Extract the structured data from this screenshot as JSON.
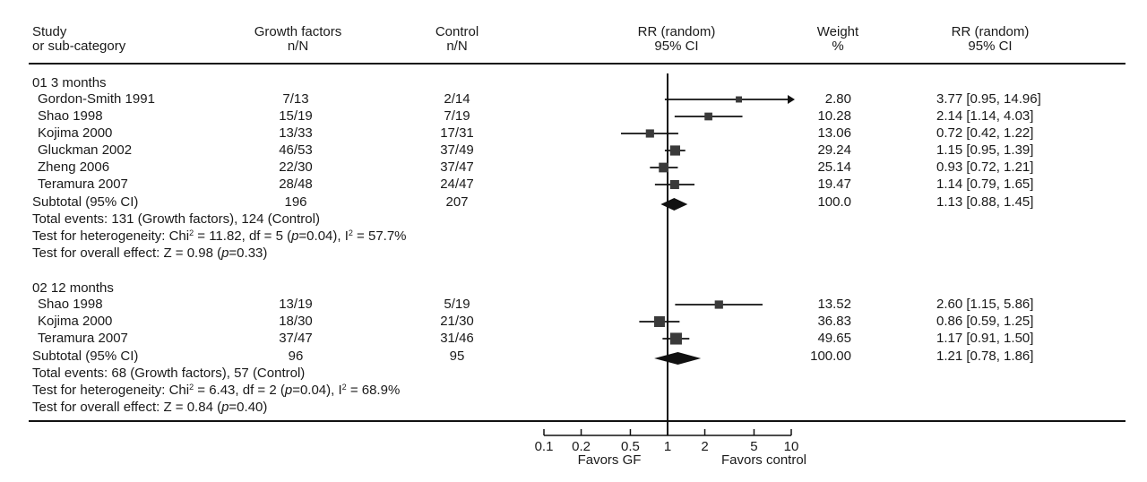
{
  "header": {
    "study_l1": "Study",
    "study_l2": "or sub-category",
    "gf_l1": "Growth factors",
    "gf_l2": "n/N",
    "ctrl_l1": "Control",
    "ctrl_l2": "n/N",
    "rr_l1": "RR (random)",
    "rr_l2": "95% CI",
    "weight_l1": "Weight",
    "weight_l2": "%",
    "rrv_l1": "RR (random)",
    "rrv_l2": "95% CI"
  },
  "groups": [
    {
      "title": "01 3 months",
      "studies": [
        {
          "name": "Gordon-Smith 1991",
          "gf": "7/13",
          "ctrl": "2/14",
          "weight": "2.80",
          "ci_text": "3.77 [0.95, 14.96]"
        },
        {
          "name": "Shao 1998",
          "gf": "15/19",
          "ctrl": "7/19",
          "weight": "10.28",
          "ci_text": "2.14 [1.14, 4.03]"
        },
        {
          "name": "Kojima 2000",
          "gf": "13/33",
          "ctrl": "17/31",
          "weight": "13.06",
          "ci_text": "0.72 [0.42, 1.22]"
        },
        {
          "name": "Gluckman 2002",
          "gf": "46/53",
          "ctrl": "37/49",
          "weight": "29.24",
          "ci_text": "1.15 [0.95, 1.39]"
        },
        {
          "name": "Zheng 2006",
          "gf": "22/30",
          "ctrl": "37/47",
          "weight": "25.14",
          "ci_text": "0.93 [0.72, 1.21]"
        },
        {
          "name": "Teramura 2007",
          "gf": "28/48",
          "ctrl": "24/47",
          "weight": "19.47",
          "ci_text": "1.14 [0.79, 1.65]"
        }
      ],
      "subtotal": {
        "name": "Subtotal (95% CI)",
        "gf": "196",
        "ctrl": "207",
        "weight": "100.0",
        "ci_text": "1.13 [0.88, 1.45]"
      },
      "events": "Total events: 131 (Growth factors), 124 (Control)",
      "het_a": "Test for heterogeneity: Chi",
      "het_sup1": "2",
      "het_b": " = 11.82, df = 5 (",
      "het_p": "p",
      "het_c": "=0.04), I",
      "het_sup2": "2",
      "het_d": " = 57.7%",
      "overall_a": "Test for overall effect: Z = 0.98 (",
      "overall_p": "p",
      "overall_b": "=0.33)"
    },
    {
      "title": "02 12 months",
      "studies": [
        {
          "name": "Shao 1998",
          "gf": "13/19",
          "ctrl": "5/19",
          "weight": "13.52",
          "ci_text": "2.60 [1.15, 5.86]"
        },
        {
          "name": "Kojima 2000",
          "gf": "18/30",
          "ctrl": "21/30",
          "weight": "36.83",
          "ci_text": "0.86 [0.59, 1.25]"
        },
        {
          "name": "Teramura 2007",
          "gf": "37/47",
          "ctrl": "31/46",
          "weight": "49.65",
          "ci_text": "1.17 [0.91, 1.50]"
        }
      ],
      "subtotal": {
        "name": "Subtotal (95% CI)",
        "gf": "96",
        "ctrl": "95",
        "weight": "100.00",
        "ci_text": "1.21 [0.78, 1.86]"
      },
      "events": "Total events: 68 (Growth factors), 57 (Control)",
      "het_a": "Test for heterogeneity: Chi",
      "het_sup1": "2",
      "het_b": " = 6.43, df = 2 (",
      "het_p": "p",
      "het_c": "=0.04), I",
      "het_sup2": "2",
      "het_d": " = 68.9%",
      "overall_a": "Test for overall effect: Z = 0.84 (",
      "overall_p": "p",
      "overall_b": "=0.40)"
    }
  ],
  "axis": {
    "ticks": [
      "0.1",
      "0.2",
      "0.5",
      "1",
      "2",
      "5",
      "10"
    ],
    "favors_left": "Favors GF",
    "favors_right": "Favors control"
  },
  "chart_data": {
    "type": "forest",
    "title": "",
    "xlabel": "RR (random) 95% CI",
    "xscale": "log",
    "xlim": [
      0.1,
      10
    ],
    "reference": 1,
    "series": [
      {
        "name": "01 3 months",
        "studies": [
          {
            "label": "Gordon-Smith 1991",
            "rr": 3.77,
            "lo": 0.95,
            "hi": 14.96,
            "weight": 2.8
          },
          {
            "label": "Shao 1998",
            "rr": 2.14,
            "lo": 1.14,
            "hi": 4.03,
            "weight": 10.28
          },
          {
            "label": "Kojima 2000",
            "rr": 0.72,
            "lo": 0.42,
            "hi": 1.22,
            "weight": 13.06
          },
          {
            "label": "Gluckman 2002",
            "rr": 1.15,
            "lo": 0.95,
            "hi": 1.39,
            "weight": 29.24
          },
          {
            "label": "Zheng 2006",
            "rr": 0.93,
            "lo": 0.72,
            "hi": 1.21,
            "weight": 25.14
          },
          {
            "label": "Teramura 2007",
            "rr": 1.14,
            "lo": 0.79,
            "hi": 1.65,
            "weight": 19.47
          }
        ],
        "pooled": {
          "rr": 1.13,
          "lo": 0.88,
          "hi": 1.45
        }
      },
      {
        "name": "02 12 months",
        "studies": [
          {
            "label": "Shao 1998",
            "rr": 2.6,
            "lo": 1.15,
            "hi": 5.86,
            "weight": 13.52
          },
          {
            "label": "Kojima 2000",
            "rr": 0.86,
            "lo": 0.59,
            "hi": 1.25,
            "weight": 36.83
          },
          {
            "label": "Teramura 2007",
            "rr": 1.17,
            "lo": 0.91,
            "hi": 1.5,
            "weight": 49.65
          }
        ],
        "pooled": {
          "rr": 1.21,
          "lo": 0.78,
          "hi": 1.86
        }
      }
    ]
  }
}
